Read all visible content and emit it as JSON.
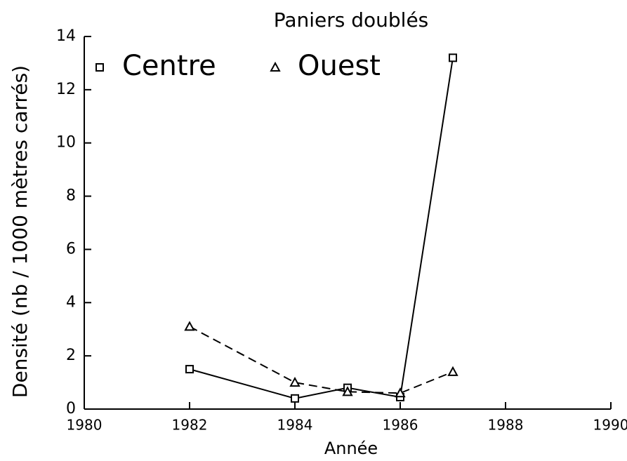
{
  "chart_data": {
    "type": "line",
    "title": "Paniers doublés",
    "xlabel": "Année",
    "ylabel": "Densité (nb / 1000 mètres carrés)",
    "xlim": [
      1980,
      1990
    ],
    "xticks": [
      1980,
      1982,
      1984,
      1986,
      1988,
      1990
    ],
    "ylim": [
      0,
      14
    ],
    "yticks": [
      0,
      2,
      4,
      6,
      8,
      10,
      12,
      14
    ],
    "legend": "upper left",
    "series": [
      {
        "name": "Centre",
        "color": "#000000",
        "marker": "square",
        "linestyle": "solid",
        "x": [
          1982,
          1984,
          1985,
          1986,
          1987
        ],
        "values": [
          1.5,
          0.4,
          0.8,
          0.45,
          13.2
        ]
      },
      {
        "name": "Ouest",
        "color": "#000000",
        "marker": "triangle",
        "linestyle": "dashed",
        "x": [
          1982,
          1984,
          1985,
          1986,
          1987
        ],
        "values": [
          3.1,
          1.0,
          0.65,
          0.6,
          1.4
        ]
      }
    ]
  }
}
